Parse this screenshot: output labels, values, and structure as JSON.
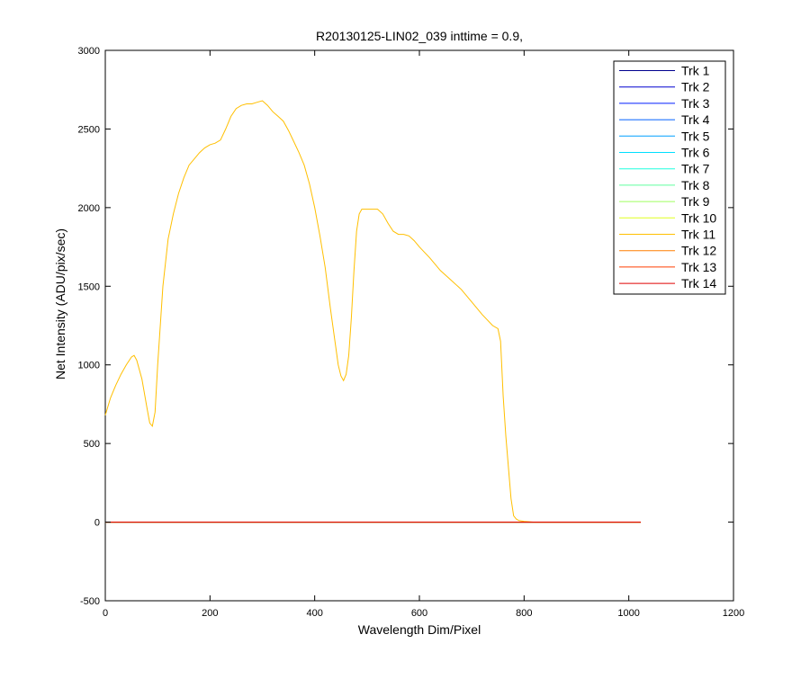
{
  "chart_data": {
    "type": "line",
    "title": "R20130125-LIN02_039 inttime = 0.9,",
    "xlabel": "Wavelength Dim/Pixel",
    "ylabel": "Net Intensity (ADU/pix/sec)",
    "xlim": [
      0,
      1200
    ],
    "ylim": [
      -500,
      3000
    ],
    "xticks": [
      "0",
      "200",
      "400",
      "600",
      "800",
      "1000",
      "1200"
    ],
    "yticks": [
      "-500",
      "0",
      "500",
      "1000",
      "1500",
      "2000",
      "2500",
      "3000"
    ],
    "grid": false,
    "legend_position": "top-right",
    "series": [
      {
        "name": "Trk 1",
        "color": "#00008f",
        "x": [
          0,
          1023
        ],
        "values": [
          0,
          0
        ]
      },
      {
        "name": "Trk 2",
        "color": "#0000cf",
        "x": [
          0,
          1023
        ],
        "values": [
          0,
          0
        ]
      },
      {
        "name": "Trk 3",
        "color": "#001fff",
        "x": [
          0,
          1023
        ],
        "values": [
          0,
          0
        ]
      },
      {
        "name": "Trk 4",
        "color": "#005fff",
        "x": [
          0,
          1023
        ],
        "values": [
          0,
          0
        ]
      },
      {
        "name": "Trk 5",
        "color": "#009fff",
        "x": [
          0,
          1023
        ],
        "values": [
          0,
          0
        ]
      },
      {
        "name": "Trk 6",
        "color": "#00dfff",
        "x": [
          0,
          1023
        ],
        "values": [
          0,
          0
        ]
      },
      {
        "name": "Trk 7",
        "color": "#1fffdf",
        "x": [
          0,
          1023
        ],
        "values": [
          0,
          0
        ]
      },
      {
        "name": "Trk 8",
        "color": "#5fff9f",
        "x": [
          0,
          1023
        ],
        "values": [
          0,
          0
        ]
      },
      {
        "name": "Trk 9",
        "color": "#9fff5f",
        "x": [
          0,
          1023
        ],
        "values": [
          0,
          0
        ]
      },
      {
        "name": "Trk 10",
        "color": "#dfff1f",
        "x": [
          0,
          1023
        ],
        "values": [
          0,
          0
        ]
      },
      {
        "name": "Trk 11",
        "color": "#ffbf00",
        "x": [
          0,
          10,
          20,
          30,
          40,
          50,
          55,
          60,
          70,
          80,
          85,
          90,
          95,
          100,
          110,
          120,
          130,
          140,
          150,
          160,
          170,
          180,
          190,
          200,
          210,
          220,
          230,
          240,
          250,
          260,
          270,
          280,
          290,
          300,
          310,
          320,
          330,
          340,
          350,
          360,
          370,
          380,
          390,
          400,
          410,
          420,
          430,
          440,
          445,
          450,
          455,
          460,
          465,
          470,
          475,
          480,
          485,
          490,
          500,
          510,
          520,
          530,
          540,
          550,
          560,
          570,
          580,
          590,
          600,
          620,
          640,
          660,
          680,
          700,
          720,
          740,
          750,
          755,
          760,
          765,
          770,
          775,
          780,
          785,
          790,
          800,
          820,
          900,
          1023
        ],
        "values": [
          680,
          790,
          870,
          940,
          1000,
          1050,
          1060,
          1030,
          910,
          720,
          630,
          610,
          700,
          1000,
          1500,
          1800,
          1960,
          2090,
          2190,
          2270,
          2310,
          2350,
          2380,
          2400,
          2410,
          2430,
          2500,
          2580,
          2630,
          2650,
          2660,
          2660,
          2670,
          2680,
          2650,
          2610,
          2580,
          2550,
          2490,
          2420,
          2350,
          2270,
          2150,
          2000,
          1820,
          1620,
          1360,
          1120,
          1000,
          930,
          900,
          940,
          1060,
          1300,
          1600,
          1850,
          1960,
          1990,
          1990,
          1990,
          1990,
          1960,
          1900,
          1850,
          1830,
          1830,
          1820,
          1790,
          1750,
          1680,
          1600,
          1540,
          1480,
          1400,
          1320,
          1250,
          1230,
          1150,
          800,
          550,
          350,
          150,
          40,
          20,
          10,
          5,
          0,
          0,
          0
        ]
      },
      {
        "name": "Trk 12",
        "color": "#ff7f00",
        "x": [
          0,
          1023
        ],
        "values": [
          0,
          0
        ]
      },
      {
        "name": "Trk 13",
        "color": "#ff3f00",
        "x": [
          0,
          1023
        ],
        "values": [
          0,
          0
        ]
      },
      {
        "name": "Trk 14",
        "color": "#df0000",
        "x": [
          0,
          1023
        ],
        "values": [
          0,
          0
        ]
      }
    ]
  }
}
